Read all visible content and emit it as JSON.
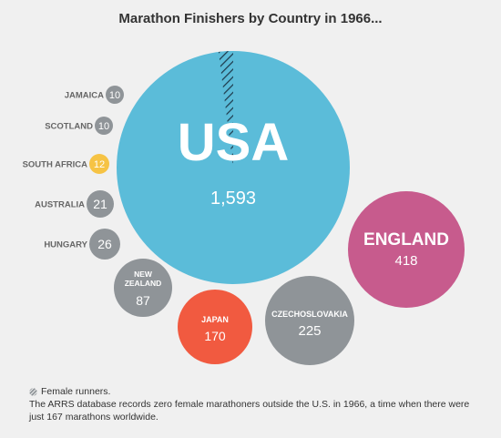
{
  "chart_data": {
    "type": "bubble",
    "title": "Marathon Finishers by Country in 1966...",
    "unit": "finishers",
    "countries": [
      {
        "name": "USA",
        "value": 1593,
        "label": "1,593",
        "female": 32,
        "color": "#5bbcd9"
      },
      {
        "name": "ENGLAND",
        "value": 418,
        "label": "418",
        "color": "#c75b8d"
      },
      {
        "name": "CZECHOSLOVAKIA",
        "value": 225,
        "label": "225",
        "color": "#8f9498"
      },
      {
        "name": "JAPAN",
        "value": 170,
        "label": "170",
        "color": "#f15a40"
      },
      {
        "name": "NEW ZEALAND",
        "value": 87,
        "label": "87",
        "color": "#8f9498"
      },
      {
        "name": "HUNGARY",
        "value": 26,
        "label": "26",
        "color": "#8f9498"
      },
      {
        "name": "AUSTRALIA",
        "value": 21,
        "label": "21",
        "color": "#8f9498"
      },
      {
        "name": "SOUTH AFRICA",
        "value": 12,
        "label": "12",
        "color": "#f6c344"
      },
      {
        "name": "SCOTLAND",
        "value": 10,
        "label": "10",
        "color": "#8f9498"
      },
      {
        "name": "JAMAICA",
        "value": 10,
        "label": "10",
        "color": "#8f9498"
      }
    ]
  },
  "legend": {
    "label": "Female runners."
  },
  "footnote": "The ARRS database records zero female marathoners outside the U.S. in 1966, a time when there were just 167 marathons worldwide.",
  "colors": {
    "background": "#f0f0f0",
    "usa": "#5bbcd9",
    "england": "#c75b8d",
    "grey": "#8f9498",
    "japan": "#f15a40",
    "south_africa": "#f6c344",
    "hatch": "#1f3b4d",
    "side_label": "#666666"
  }
}
